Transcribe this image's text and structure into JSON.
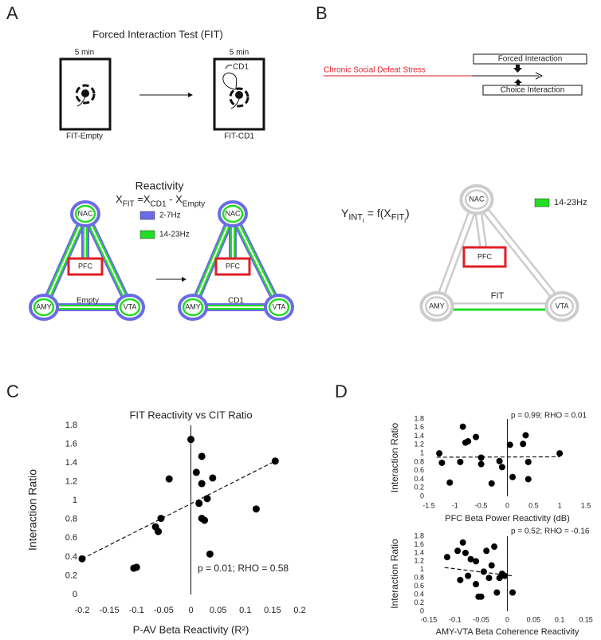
{
  "panels": [
    "A",
    "B",
    "C",
    "D"
  ],
  "nodes": [
    "NAC",
    "PFC",
    "AMY",
    "VTA"
  ],
  "fit_test": {
    "title": "Forced Interaction Test (FIT)",
    "duration": "5 min",
    "boxes": [
      "FIT-Empty",
      "FIT-CD1"
    ],
    "intruder": "CD1"
  },
  "reactivity": {
    "title": "Reactivity",
    "formula": [
      {
        "text": "X",
        "level": 0
      },
      {
        "text": "FIT",
        "level": 1
      },
      {
        "text": " =X",
        "level": 0
      },
      {
        "text": "CD1",
        "level": 1
      },
      {
        "text": " - X",
        "level": 0
      },
      {
        "text": "Empty",
        "level": 1
      }
    ],
    "legend": [
      {
        "label": "2-7Hz",
        "color": "#6b6be6"
      },
      {
        "label": "14-23Hz",
        "color": "#22dd22"
      }
    ],
    "networks": [
      "Empty",
      "CD1"
    ]
  },
  "timeline": {
    "stress": "Chronic Social Defeat Stress",
    "forced": "Forced Interaction",
    "choice": "Choice Interaction"
  },
  "model": {
    "formula": [
      {
        "text": "Y",
        "level": 0
      },
      {
        "text": "INT",
        "level": 1
      },
      {
        "text": "i",
        "level": 2
      },
      {
        "text": " = f(X",
        "level": 0
      },
      {
        "text": "FIT",
        "level": 1
      },
      {
        "text": "i",
        "level": 2
      },
      {
        "text": ")",
        "level": 0
      }
    ],
    "legend": {
      "label": "14-23Hz",
      "color": "#22dd22"
    },
    "network": "FIT"
  },
  "chart_data": [
    {
      "type": "scatter",
      "title": "FIT Reactivity vs CIT Ratio",
      "x_label": "P-AV Beta Reactivity (R²)",
      "y_label": "Interaction Ratio",
      "annotation": "p = 0.01; RHO = 0.58",
      "color": "#000000",
      "x": [
        -0.2,
        -0.105,
        -0.1,
        -0.065,
        -0.06,
        -0.055,
        -0.04,
        0,
        0.01,
        0.02,
        0.02,
        0.04,
        0.015,
        0.03,
        0.02,
        0.025,
        0.035,
        0.12,
        0.155
      ],
      "y": [
        0.38,
        0.28,
        0.29,
        0.72,
        0.67,
        0.81,
        1.23,
        1.65,
        1.3,
        1.47,
        1.18,
        1.24,
        0.97,
        1.02,
        0.81,
        0.79,
        0.43,
        0.91,
        1.42
      ],
      "trendline": {
        "x": [
          -0.2,
          0.155
        ],
        "y": [
          0.38,
          1.42
        ]
      },
      "xlim": [
        -0.2,
        0.2
      ],
      "ylim": [
        0,
        1.8
      ],
      "xticks": [
        -0.2,
        -0.15,
        -0.1,
        -0.05,
        0,
        0.05,
        0.1,
        0.15,
        0.2
      ],
      "yticks": [
        0,
        0.2,
        0.4,
        0.6,
        0.8,
        1,
        1.2,
        1.4,
        1.6,
        1.8
      ]
    },
    {
      "type": "scatter",
      "x_label": "PFC Beta Power Reactivity (dB)",
      "y_label": "Interaction Ratio",
      "annotation": "p = 0.99; RHO = 0.01",
      "color": "#000000",
      "x": [
        -1.3,
        -1.25,
        -1.1,
        -0.9,
        -0.85,
        -0.8,
        -0.75,
        -0.6,
        -0.5,
        -0.5,
        -0.3,
        -0.15,
        -0.1,
        0.05,
        0.1,
        0.3,
        0.35,
        0.4,
        0.4,
        1.0
      ],
      "y": [
        1.0,
        0.78,
        0.32,
        0.8,
        1.62,
        1.25,
        1.28,
        1.38,
        0.75,
        0.9,
        0.3,
        0.82,
        0.68,
        1.2,
        0.45,
        1.22,
        1.42,
        0.8,
        0.4,
        1.0
      ],
      "trendline": {
        "x": [
          -1.35,
          1.0
        ],
        "y": [
          0.91,
          0.92
        ]
      },
      "xlim": [
        -1.5,
        1.5
      ],
      "ylim": [
        0,
        1.8
      ],
      "xticks": [
        -1.5,
        -1,
        -0.5,
        0,
        0.5,
        1,
        1.5
      ],
      "yticks": [
        0,
        0.2,
        0.4,
        0.6,
        0.8,
        1,
        1.2,
        1.4,
        1.6,
        1.8
      ]
    },
    {
      "type": "scatter",
      "x_label": "AMY-VTA Beta Coherence Reactivity",
      "y_label": "Interaction Ratio",
      "annotation": "p = 0.52; RHO = -0.16",
      "color": "#000000",
      "x": [
        -0.115,
        -0.095,
        -0.09,
        -0.085,
        -0.08,
        -0.075,
        -0.07,
        -0.06,
        -0.06,
        -0.055,
        -0.05,
        -0.045,
        -0.04,
        -0.035,
        -0.03,
        -0.025,
        -0.02,
        -0.015,
        -0.01,
        -0.005,
        0.01
      ],
      "y": [
        1.3,
        1.45,
        0.75,
        1.65,
        1.4,
        0.85,
        1.25,
        0.65,
        1.2,
        0.35,
        0.35,
        0.95,
        1.45,
        0.8,
        1.1,
        1.55,
        0.45,
        0.8,
        0.9,
        0.85,
        0.45
      ],
      "trendline": {
        "x": [
          -0.12,
          0.01
        ],
        "y": [
          1.05,
          0.85
        ]
      },
      "xlim": [
        -0.15,
        0.15
      ],
      "ylim": [
        0,
        1.8
      ],
      "xticks": [
        -0.15,
        -0.1,
        -0.05,
        0,
        0.05,
        0.1,
        0.15
      ],
      "yticks": [
        0,
        0.2,
        0.4,
        0.6,
        0.8,
        1,
        1.2,
        1.4,
        1.6,
        1.8
      ]
    }
  ]
}
